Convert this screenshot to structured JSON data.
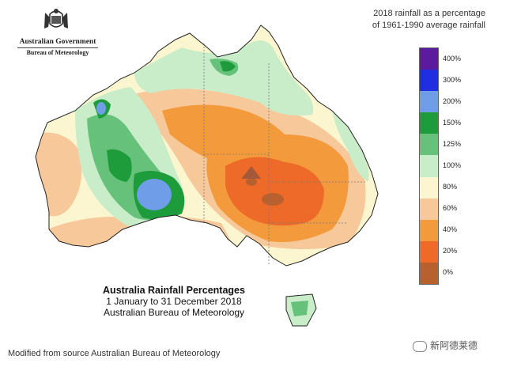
{
  "logo": {
    "government": "Australian Government",
    "agency": "Bureau of Meteorology"
  },
  "legend": {
    "title_line1": "2018 rainfall as a percentage",
    "title_line2": "of 1961-1990 average rainfall",
    "bands": [
      {
        "label": "400%",
        "color": "#5c1a9e"
      },
      {
        "label": "300%",
        "color": "#1f2fe0"
      },
      {
        "label": "200%",
        "color": "#6f9de8"
      },
      {
        "label": "150%",
        "color": "#1e9b3a"
      },
      {
        "label": "125%",
        "color": "#66c17a"
      },
      {
        "label": "100%",
        "color": "#c9ecc9"
      },
      {
        "label": "80%",
        "color": "#fbf6cf"
      },
      {
        "label": "60%",
        "color": "#f7c89a"
      },
      {
        "label": "40%",
        "color": "#f39a3c"
      },
      {
        "label": "20%",
        "color": "#ed6a28"
      },
      {
        "label": "0%",
        "color": "#b8612e"
      }
    ]
  },
  "caption": {
    "title": "Australia Rainfall Percentages",
    "period": "1 January to 31 December 2018",
    "agency": "Australian Bureau of Meteorology"
  },
  "source_note": "Modified from source Australian Bureau of Meteorology",
  "watermark": "新阿德莱德"
}
